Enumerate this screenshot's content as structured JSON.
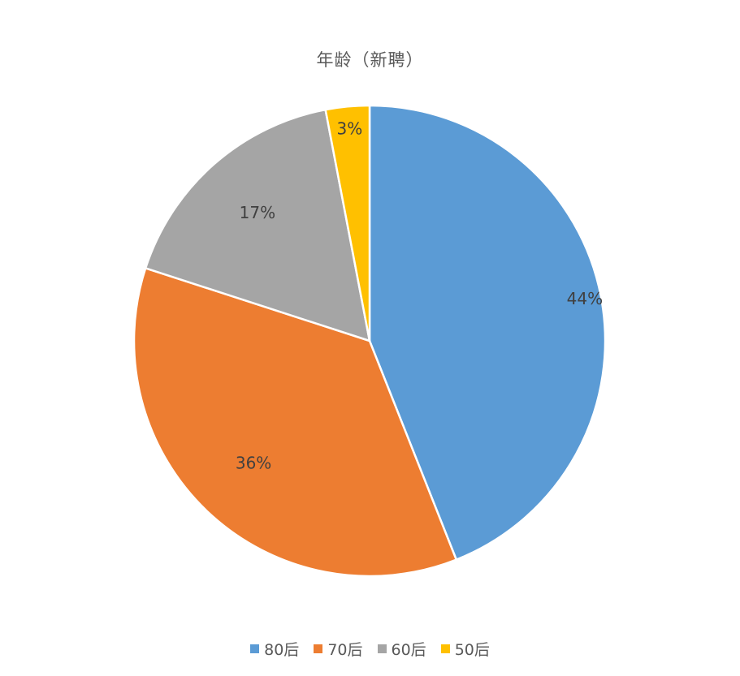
{
  "chart_data": {
    "type": "pie",
    "title": "年龄（新聘）",
    "categories": [
      "80后",
      "70后",
      "60后",
      "50后"
    ],
    "values": [
      44,
      36,
      17,
      3
    ],
    "labels": [
      "44%",
      "36%",
      "17%",
      "3%"
    ],
    "colors": [
      "#5B9BD5",
      "#ED7D31",
      "#A5A5A5",
      "#FFC000"
    ],
    "legend_position": "bottom",
    "start_angle": "12 o'clock",
    "direction": "clockwise"
  }
}
